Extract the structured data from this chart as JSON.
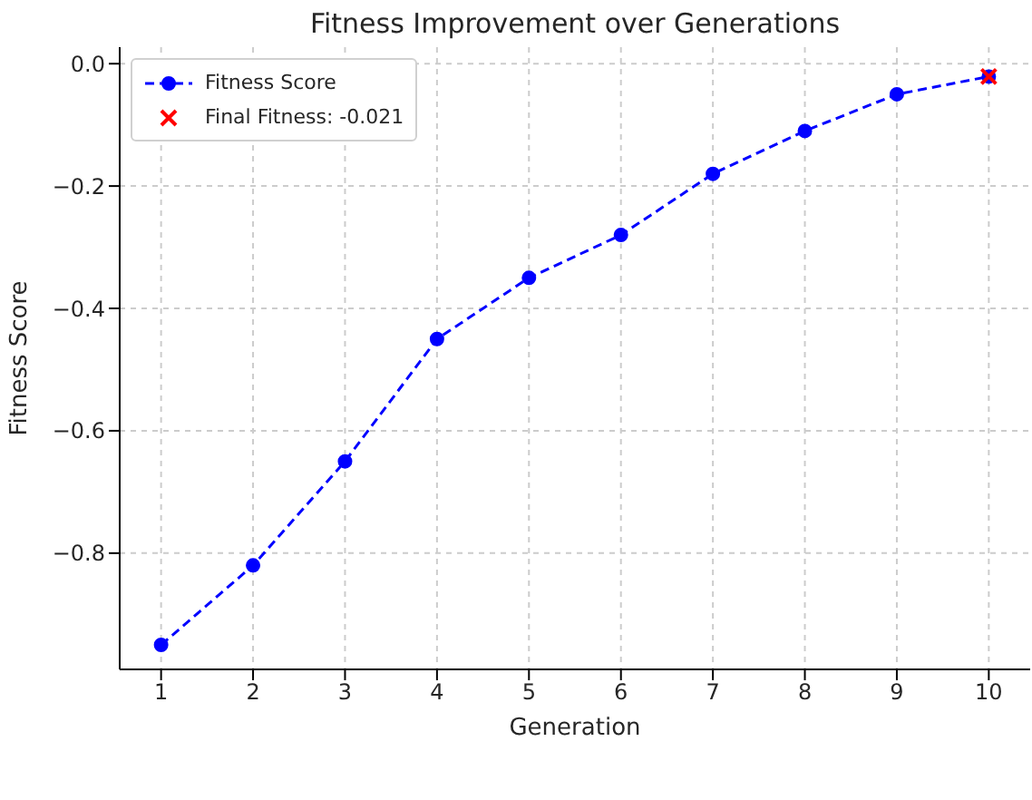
{
  "chart_data": {
    "type": "line",
    "title": "Fitness Improvement over Generations",
    "xlabel": "Generation",
    "ylabel": "Fitness Score",
    "x": [
      1,
      2,
      3,
      4,
      5,
      6,
      7,
      8,
      9,
      10
    ],
    "series": [
      {
        "name": "Fitness Score",
        "color": "#0000ff",
        "marker": "circle",
        "line_style": "dashed",
        "values": [
          -0.95,
          -0.82,
          -0.65,
          -0.45,
          -0.35,
          -0.28,
          -0.18,
          -0.11,
          -0.05,
          -0.021
        ]
      },
      {
        "name": "Final Fitness: -0.021",
        "type": "scatter",
        "color": "#ff0000",
        "marker": "cross",
        "x": [
          10
        ],
        "values": [
          -0.021
        ]
      }
    ],
    "xlim": [
      0.55,
      10.45
    ],
    "xticks": [
      1,
      2,
      3,
      4,
      5,
      6,
      7,
      8,
      9,
      10
    ],
    "ylim": [
      -0.99,
      0.027
    ],
    "yticks": [
      {
        "value": -0.8,
        "label": "−0.8"
      },
      {
        "value": -0.6,
        "label": "−0.6"
      },
      {
        "value": -0.4,
        "label": "−0.4"
      },
      {
        "value": -0.2,
        "label": "−0.2"
      },
      {
        "value": 0,
        "label": "0.0"
      }
    ],
    "grid": true,
    "legend": "top left"
  }
}
